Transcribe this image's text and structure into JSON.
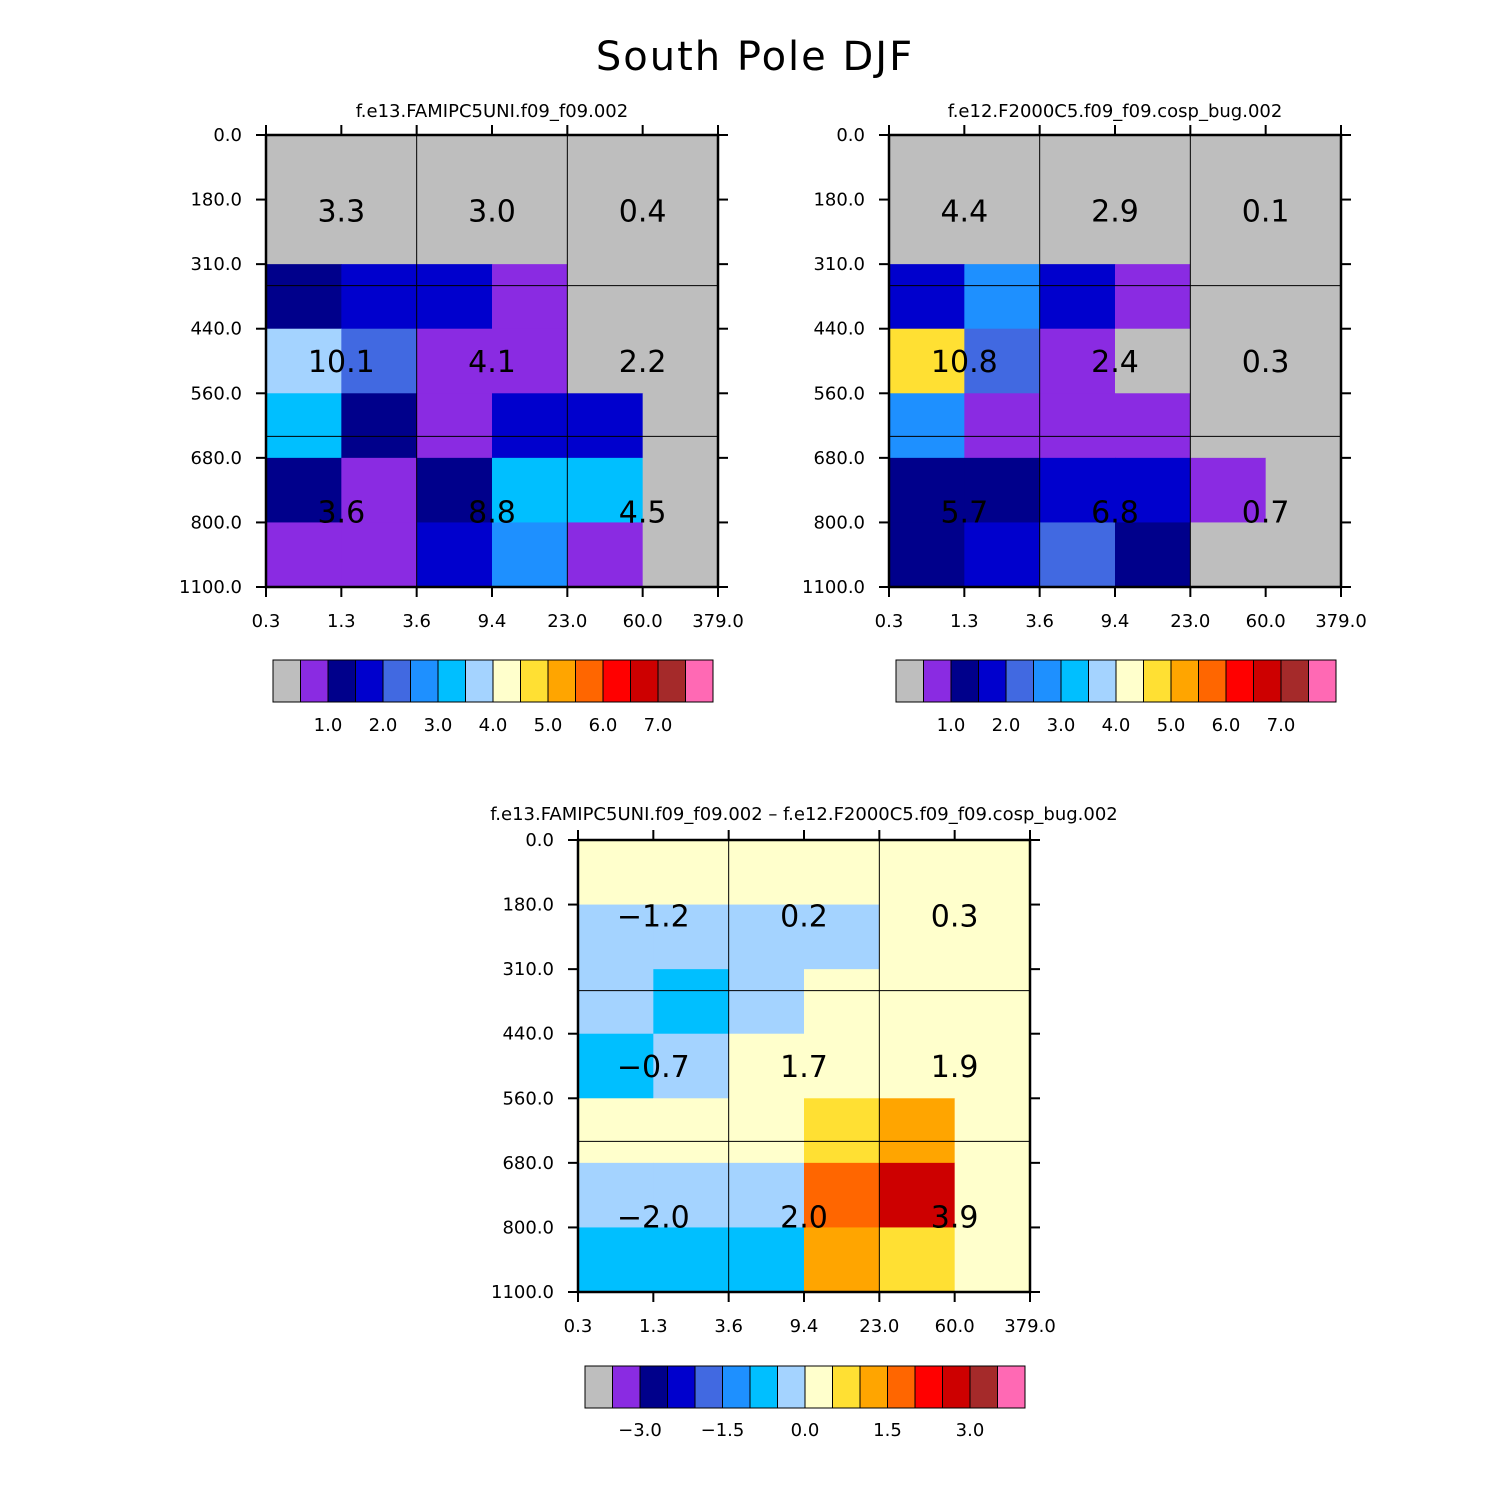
{
  "title": "South Pole DJF",
  "chart_data": [
    {
      "type": "heatmap",
      "title": "f.e13.FAMIPC5UNI.f09_f09.002",
      "x_ticks": [
        "0.3",
        "1.3",
        "3.6",
        "9.4",
        "23.0",
        "60.0",
        "379.0"
      ],
      "y_ticks": [
        "0.0",
        "180.0",
        "310.0",
        "440.0",
        "560.0",
        "680.0",
        "800.0",
        "1100.0"
      ],
      "x_unit_label": "",
      "y_unit_label": "",
      "cell_colors": [
        [
          "#BEBEBE",
          "#BEBEBE",
          "#BEBEBE",
          "#BEBEBE",
          "#BEBEBE",
          "#BEBEBE"
        ],
        [
          "#BEBEBE",
          "#BEBEBE",
          "#BEBEBE",
          "#BEBEBE",
          "#BEBEBE",
          "#BEBEBE"
        ],
        [
          "#00008B",
          "#0000CD",
          "#0000CD",
          "#8A2BE2",
          "#BEBEBE",
          "#BEBEBE"
        ],
        [
          "#A4D3FF",
          "#4169E1",
          "#8A2BE2",
          "#8A2BE2",
          "#BEBEBE",
          "#BEBEBE"
        ],
        [
          "#00BFFF",
          "#00008B",
          "#8A2BE2",
          "#0000CD",
          "#0000CD",
          "#BEBEBE"
        ],
        [
          "#00008B",
          "#8A2BE2",
          "#00008B",
          "#00BFFF",
          "#00BFFF",
          "#BEBEBE"
        ],
        [
          "#8A2BE2",
          "#8A2BE2",
          "#0000CD",
          "#1E90FF",
          "#8A2BE2",
          "#BEBEBE"
        ]
      ],
      "totals": [
        [
          "3.3",
          "3.0",
          "0.4"
        ],
        [
          "10.1",
          "4.1",
          "2.2"
        ],
        [
          "3.6",
          "8.8",
          "4.5"
        ]
      ],
      "colorbar": {
        "colors": [
          "#BEBEBE",
          "#8A2BE2",
          "#00008B",
          "#0000CD",
          "#4169E1",
          "#1E90FF",
          "#00BFFF",
          "#A4D3FF",
          "#FFFFCC",
          "#FFE033",
          "#FFA500",
          "#FF6600",
          "#FF0000",
          "#CD0000",
          "#A52A2A",
          "#FF69B4"
        ],
        "labels": [
          "1.0",
          "2.0",
          "3.0",
          "4.0",
          "5.0",
          "6.0",
          "7.0"
        ]
      }
    },
    {
      "type": "heatmap",
      "title": "f.e12.F2000C5.f09_f09.cosp_bug.002",
      "x_ticks": [
        "0.3",
        "1.3",
        "3.6",
        "9.4",
        "23.0",
        "60.0",
        "379.0"
      ],
      "y_ticks": [
        "0.0",
        "180.0",
        "310.0",
        "440.0",
        "560.0",
        "680.0",
        "800.0",
        "1100.0"
      ],
      "cell_colors": [
        [
          "#BEBEBE",
          "#BEBEBE",
          "#BEBEBE",
          "#BEBEBE",
          "#BEBEBE",
          "#BEBEBE"
        ],
        [
          "#BEBEBE",
          "#BEBEBE",
          "#BEBEBE",
          "#BEBEBE",
          "#BEBEBE",
          "#BEBEBE"
        ],
        [
          "#0000CD",
          "#1E90FF",
          "#0000CD",
          "#8A2BE2",
          "#BEBEBE",
          "#BEBEBE"
        ],
        [
          "#FFE033",
          "#4169E1",
          "#8A2BE2",
          "#BEBEBE",
          "#BEBEBE",
          "#BEBEBE"
        ],
        [
          "#1E90FF",
          "#8A2BE2",
          "#8A2BE2",
          "#8A2BE2",
          "#BEBEBE",
          "#BEBEBE"
        ],
        [
          "#00008B",
          "#00008B",
          "#0000CD",
          "#0000CD",
          "#8A2BE2",
          "#BEBEBE"
        ],
        [
          "#00008B",
          "#0000CD",
          "#4169E1",
          "#00008B",
          "#BEBEBE",
          "#BEBEBE"
        ]
      ],
      "totals": [
        [
          "4.4",
          "2.9",
          "0.1"
        ],
        [
          "10.8",
          "2.4",
          "0.3"
        ],
        [
          "5.7",
          "6.8",
          "0.7"
        ]
      ],
      "colorbar": {
        "colors": [
          "#BEBEBE",
          "#8A2BE2",
          "#00008B",
          "#0000CD",
          "#4169E1",
          "#1E90FF",
          "#00BFFF",
          "#A4D3FF",
          "#FFFFCC",
          "#FFE033",
          "#FFA500",
          "#FF6600",
          "#FF0000",
          "#CD0000",
          "#A52A2A",
          "#FF69B4"
        ],
        "labels": [
          "1.0",
          "2.0",
          "3.0",
          "4.0",
          "5.0",
          "6.0",
          "7.0"
        ]
      }
    },
    {
      "type": "heatmap",
      "title": "f.e13.FAMIPC5UNI.f09_f09.002 – f.e12.F2000C5.f09_f09.cosp_bug.002",
      "x_ticks": [
        "0.3",
        "1.3",
        "3.6",
        "9.4",
        "23.0",
        "60.0",
        "379.0"
      ],
      "y_ticks": [
        "0.0",
        "180.0",
        "310.0",
        "440.0",
        "560.0",
        "680.0",
        "800.0",
        "1100.0"
      ],
      "cell_colors": [
        [
          "#FFFFCC",
          "#FFFFCC",
          "#FFFFCC",
          "#FFFFCC",
          "#FFFFCC",
          "#FFFFCC"
        ],
        [
          "#A4D3FF",
          "#A4D3FF",
          "#A4D3FF",
          "#A4D3FF",
          "#FFFFCC",
          "#FFFFCC"
        ],
        [
          "#A4D3FF",
          "#00BFFF",
          "#A4D3FF",
          "#FFFFCC",
          "#FFFFCC",
          "#FFFFCC"
        ],
        [
          "#00BFFF",
          "#A4D3FF",
          "#FFFFCC",
          "#FFFFCC",
          "#FFFFCC",
          "#FFFFCC"
        ],
        [
          "#FFFFCC",
          "#FFFFCC",
          "#FFFFCC",
          "#FFE033",
          "#FFA500",
          "#FFFFCC"
        ],
        [
          "#A4D3FF",
          "#A4D3FF",
          "#A4D3FF",
          "#FF6600",
          "#CD0000",
          "#FFFFCC"
        ],
        [
          "#00BFFF",
          "#00BFFF",
          "#00BFFF",
          "#FFA500",
          "#FFE033",
          "#FFFFCC"
        ]
      ],
      "totals": [
        [
          "−1.2",
          "0.2",
          "0.3"
        ],
        [
          "−0.7",
          "1.7",
          "1.9"
        ],
        [
          "−2.0",
          "2.0",
          "3.9"
        ]
      ],
      "colorbar": {
        "colors": [
          "#BEBEBE",
          "#8A2BE2",
          "#00008B",
          "#0000CD",
          "#4169E1",
          "#1E90FF",
          "#00BFFF",
          "#A4D3FF",
          "#FFFFCC",
          "#FFE033",
          "#FFA500",
          "#FF6600",
          "#FF0000",
          "#CD0000",
          "#A52A2A",
          "#FF69B4"
        ],
        "labels": [
          "−3.0",
          "−1.5",
          "0.0",
          "1.5",
          "3.0"
        ]
      }
    }
  ]
}
